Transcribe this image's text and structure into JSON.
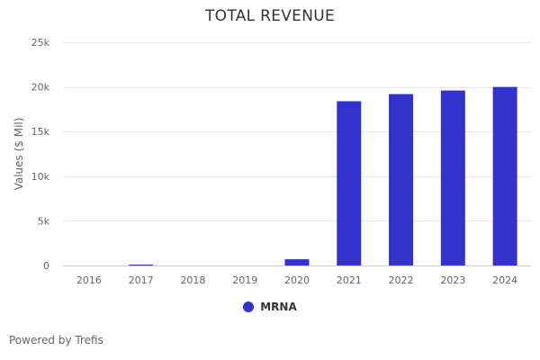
{
  "chart_data": {
    "type": "bar",
    "title": "TOTAL REVENUE",
    "xlabel": "",
    "ylabel": "Values ($ Mil)",
    "categories": [
      "2016",
      "2017",
      "2018",
      "2019",
      "2020",
      "2021",
      "2022",
      "2023",
      "2024"
    ],
    "series": [
      {
        "name": "MRNA",
        "color": "#3333cc",
        "values": [
          0,
          100,
          0,
          0,
          700,
          18400,
          19200,
          19600,
          20000
        ]
      }
    ],
    "ylim": [
      0,
      25000
    ],
    "yticks": [
      0,
      5000,
      10000,
      15000,
      20000,
      25000
    ],
    "ytick_labels": [
      "0",
      "5k",
      "10k",
      "15k",
      "20k",
      "25k"
    ],
    "grid": true,
    "legend_position": "bottom-center"
  },
  "credits": "Powered by Trefis"
}
